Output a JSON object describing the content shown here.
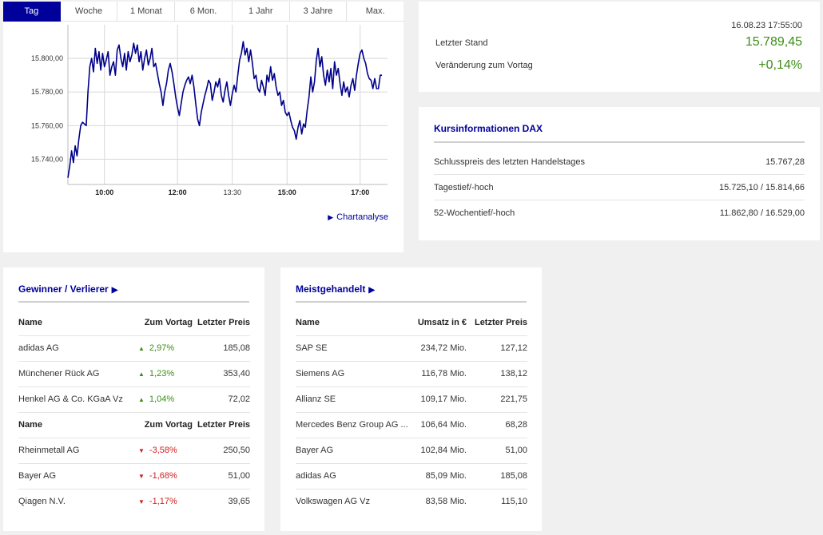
{
  "tabs": [
    "Tag",
    "Woche",
    "1 Monat",
    "6 Mon.",
    "1 Jahr",
    "3 Jahre",
    "Max."
  ],
  "active_tab": 0,
  "chart_data": {
    "type": "line",
    "y_ticks": [
      "15.740,00",
      "15.760,00",
      "15.780,00",
      "15.800,00"
    ],
    "y_tick_values": [
      15740,
      15760,
      15780,
      15800
    ],
    "ylim": [
      15725,
      15820
    ],
    "x_ticks": [
      {
        "label": "10:00",
        "hour": 10.0,
        "bold": true
      },
      {
        "label": "12:00",
        "hour": 12.0,
        "bold": true
      },
      {
        "label": "13:30",
        "hour": 13.5,
        "bold": false
      },
      {
        "label": "15:00",
        "hour": 15.0,
        "bold": true
      },
      {
        "label": "17:00",
        "hour": 17.0,
        "bold": true
      }
    ],
    "xlim": [
      9.0,
      17.75
    ],
    "grid": true,
    "color": "#00008b",
    "series": [
      {
        "values": [
          [
            9.0,
            15729
          ],
          [
            9.05,
            15736
          ],
          [
            9.1,
            15745
          ],
          [
            9.15,
            15738
          ],
          [
            9.2,
            15748
          ],
          [
            9.25,
            15742
          ],
          [
            9.3,
            15752
          ],
          [
            9.35,
            15760
          ],
          [
            9.4,
            15762
          ],
          [
            9.45,
            15761
          ],
          [
            9.5,
            15760
          ],
          [
            9.55,
            15780
          ],
          [
            9.6,
            15795
          ],
          [
            9.65,
            15800
          ],
          [
            9.7,
            15792
          ],
          [
            9.75,
            15806
          ],
          [
            9.8,
            15797
          ],
          [
            9.85,
            15804
          ],
          [
            9.9,
            15793
          ],
          [
            9.95,
            15803
          ],
          [
            10.0,
            15795
          ],
          [
            10.05,
            15799
          ],
          [
            10.1,
            15804
          ],
          [
            10.15,
            15790
          ],
          [
            10.2,
            15795
          ],
          [
            10.25,
            15798
          ],
          [
            10.3,
            15790
          ],
          [
            10.35,
            15805
          ],
          [
            10.4,
            15808
          ],
          [
            10.45,
            15800
          ],
          [
            10.5,
            15795
          ],
          [
            10.55,
            15803
          ],
          [
            10.6,
            15793
          ],
          [
            10.65,
            15804
          ],
          [
            10.7,
            15798
          ],
          [
            10.75,
            15802
          ],
          [
            10.8,
            15809
          ],
          [
            10.85,
            15803
          ],
          [
            10.9,
            15808
          ],
          [
            10.95,
            15798
          ],
          [
            11.0,
            15804
          ],
          [
            11.05,
            15793
          ],
          [
            11.1,
            15800
          ],
          [
            11.15,
            15805
          ],
          [
            11.2,
            15796
          ],
          [
            11.25,
            15800
          ],
          [
            11.3,
            15806
          ],
          [
            11.35,
            15795
          ],
          [
            11.4,
            15797
          ],
          [
            11.45,
            15791
          ],
          [
            11.5,
            15785
          ],
          [
            11.55,
            15780
          ],
          [
            11.6,
            15772
          ],
          [
            11.65,
            15780
          ],
          [
            11.7,
            15785
          ],
          [
            11.75,
            15793
          ],
          [
            11.8,
            15797
          ],
          [
            11.85,
            15792
          ],
          [
            11.9,
            15785
          ],
          [
            11.95,
            15777
          ],
          [
            12.0,
            15771
          ],
          [
            12.05,
            15766
          ],
          [
            12.1,
            15773
          ],
          [
            12.15,
            15780
          ],
          [
            12.2,
            15784
          ],
          [
            12.25,
            15787
          ],
          [
            12.3,
            15789
          ],
          [
            12.35,
            15785
          ],
          [
            12.4,
            15790
          ],
          [
            12.45,
            15783
          ],
          [
            12.5,
            15773
          ],
          [
            12.55,
            15764
          ],
          [
            12.6,
            15760
          ],
          [
            12.65,
            15768
          ],
          [
            12.7,
            15773
          ],
          [
            12.75,
            15778
          ],
          [
            12.8,
            15782
          ],
          [
            12.85,
            15787
          ],
          [
            12.9,
            15785
          ],
          [
            12.95,
            15775
          ],
          [
            13.0,
            15780
          ],
          [
            13.05,
            15786
          ],
          [
            13.1,
            15783
          ],
          [
            13.15,
            15788
          ],
          [
            13.2,
            15778
          ],
          [
            13.25,
            15774
          ],
          [
            13.3,
            15781
          ],
          [
            13.35,
            15786
          ],
          [
            13.4,
            15778
          ],
          [
            13.45,
            15772
          ],
          [
            13.5,
            15779
          ],
          [
            13.55,
            15784
          ],
          [
            13.6,
            15780
          ],
          [
            13.65,
            15790
          ],
          [
            13.7,
            15799
          ],
          [
            13.75,
            15803
          ],
          [
            13.8,
            15810
          ],
          [
            13.85,
            15802
          ],
          [
            13.9,
            15806
          ],
          [
            13.95,
            15798
          ],
          [
            14.0,
            15805
          ],
          [
            14.05,
            15797
          ],
          [
            14.1,
            15788
          ],
          [
            14.15,
            15790
          ],
          [
            14.2,
            15782
          ],
          [
            14.25,
            15780
          ],
          [
            14.3,
            15787
          ],
          [
            14.35,
            15783
          ],
          [
            14.4,
            15778
          ],
          [
            14.45,
            15790
          ],
          [
            14.5,
            15786
          ],
          [
            14.55,
            15795
          ],
          [
            14.6,
            15787
          ],
          [
            14.65,
            15791
          ],
          [
            14.7,
            15783
          ],
          [
            14.75,
            15778
          ],
          [
            14.8,
            15780
          ],
          [
            14.85,
            15772
          ],
          [
            14.9,
            15775
          ],
          [
            14.95,
            15768
          ],
          [
            15.0,
            15766
          ],
          [
            15.05,
            15768
          ],
          [
            15.1,
            15763
          ],
          [
            15.15,
            15759
          ],
          [
            15.2,
            15757
          ],
          [
            15.25,
            15752
          ],
          [
            15.3,
            15759
          ],
          [
            15.35,
            15763
          ],
          [
            15.4,
            15755
          ],
          [
            15.45,
            15761
          ],
          [
            15.5,
            15759
          ],
          [
            15.55,
            15769
          ],
          [
            15.6,
            15777
          ],
          [
            15.65,
            15789
          ],
          [
            15.7,
            15780
          ],
          [
            15.75,
            15786
          ],
          [
            15.8,
            15799
          ],
          [
            15.85,
            15806
          ],
          [
            15.9,
            15795
          ],
          [
            15.95,
            15801
          ],
          [
            16.0,
            15790
          ],
          [
            16.05,
            15784
          ],
          [
            16.1,
            15793
          ],
          [
            16.15,
            15786
          ],
          [
            16.2,
            15794
          ],
          [
            16.25,
            15782
          ],
          [
            16.3,
            15798
          ],
          [
            16.35,
            15790
          ],
          [
            16.4,
            15794
          ],
          [
            16.45,
            15785
          ],
          [
            16.5,
            15778
          ],
          [
            16.55,
            15786
          ],
          [
            16.6,
            15780
          ],
          [
            16.65,
            15783
          ],
          [
            16.7,
            15777
          ],
          [
            16.75,
            15784
          ],
          [
            16.8,
            15788
          ],
          [
            16.85,
            15781
          ],
          [
            16.9,
            15790
          ],
          [
            16.95,
            15797
          ],
          [
            17.0,
            15803
          ],
          [
            17.05,
            15805
          ],
          [
            17.1,
            15800
          ],
          [
            17.15,
            15797
          ],
          [
            17.2,
            15791
          ],
          [
            17.25,
            15788
          ],
          [
            17.3,
            15787
          ],
          [
            17.35,
            15782
          ],
          [
            17.4,
            15788
          ],
          [
            17.45,
            15782
          ],
          [
            17.5,
            15782
          ],
          [
            17.55,
            15790
          ],
          [
            17.6,
            15790
          ]
        ]
      }
    ]
  },
  "chart_link": "Chartanalyse",
  "quote": {
    "timestamp": "16.08.23 17:55:00",
    "last_label": "Letzter Stand",
    "last_value": "15.789,45",
    "change_label": "Veränderung zum Vortag",
    "change_value": "+0,14%",
    "value_color": "#3c8e14"
  },
  "kursinfo": {
    "title": "Kursinformationen DAX",
    "rows": [
      {
        "label": "Schlusspreis des letzten Handelstages",
        "value": "15.767,28"
      },
      {
        "label": "Tagestief/-hoch",
        "value": "15.725,10 / 15.814,66"
      },
      {
        "label": "52-Wochentief/-hoch",
        "value": "11.862,80 / 16.529,00"
      }
    ]
  },
  "gewinner": {
    "title": "Gewinner / Verlierer",
    "headers": [
      "Name",
      "Zum Vortag",
      "Letzter Preis"
    ],
    "winners": [
      {
        "name": "adidas AG",
        "change": "2,97%",
        "price": "185,08"
      },
      {
        "name": "Münchener Rück AG",
        "change": "1,23%",
        "price": "353,40"
      },
      {
        "name": "Henkel AG & Co. KGaA Vz",
        "change": "1,04%",
        "price": "72,02"
      }
    ],
    "losers": [
      {
        "name": "Rheinmetall AG",
        "change": "-3,58%",
        "price": "250,50"
      },
      {
        "name": "Bayer AG",
        "change": "-1,68%",
        "price": "51,00"
      },
      {
        "name": "Qiagen N.V.",
        "change": "-1,17%",
        "price": "39,65"
      }
    ]
  },
  "meistgehandelt": {
    "title": "Meistgehandelt",
    "headers": [
      "Name",
      "Umsatz in €",
      "Letzter Preis"
    ],
    "rows": [
      {
        "name": "SAP SE",
        "volume": "234,72 Mio.",
        "price": "127,12"
      },
      {
        "name": "Siemens AG",
        "volume": "116,78 Mio.",
        "price": "138,12"
      },
      {
        "name": "Allianz SE",
        "volume": "109,17 Mio.",
        "price": "221,75"
      },
      {
        "name": "Mercedes Benz Group AG ...",
        "volume": "106,64 Mio.",
        "price": "68,28"
      },
      {
        "name": "Bayer AG",
        "volume": "102,84 Mio.",
        "price": "51,00"
      },
      {
        "name": "adidas AG",
        "volume": "85,09 Mio.",
        "price": "185,08"
      },
      {
        "name": "Volkswagen AG Vz",
        "volume": "83,58 Mio.",
        "price": "115,10"
      }
    ]
  }
}
